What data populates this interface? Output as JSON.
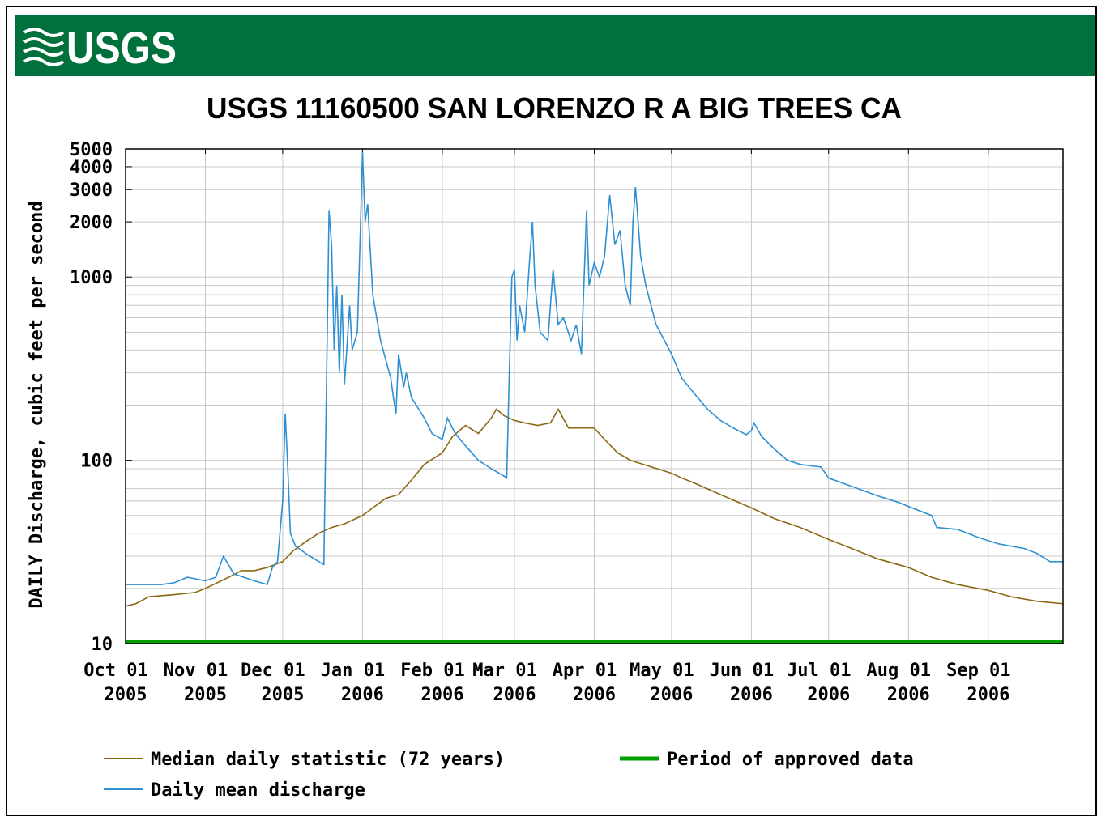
{
  "logo": "USGS",
  "chart_data": {
    "type": "line",
    "title": "USGS 11160500 SAN LORENZO R A BIG TREES CA",
    "ylabel": "DAILY Discharge, cubic feet per second",
    "yscale": "log",
    "grid": true,
    "ylim": [
      10,
      5000
    ],
    "yticks": [
      10,
      100,
      1000,
      2000,
      3000,
      4000,
      5000
    ],
    "yminor": [
      20,
      30,
      40,
      50,
      60,
      70,
      80,
      90,
      200,
      300,
      400,
      500,
      600,
      700,
      800,
      900
    ],
    "xlim": [
      "2005-10-01",
      "2006-09-30"
    ],
    "xticks": [
      {
        "value": "2005-10-01",
        "label": [
          "Oct 01",
          "2005"
        ]
      },
      {
        "value": "2005-11-01",
        "label": [
          "Nov 01",
          "2005"
        ]
      },
      {
        "value": "2005-12-01",
        "label": [
          "Dec 01",
          "2005"
        ]
      },
      {
        "value": "2006-01-01",
        "label": [
          "Jan 01",
          "2006"
        ]
      },
      {
        "value": "2006-02-01",
        "label": [
          "Feb 01",
          "2006"
        ]
      },
      {
        "value": "2006-03-01",
        "label": [
          "Mar 01",
          "2006"
        ]
      },
      {
        "value": "2006-04-01",
        "label": [
          "Apr 01",
          "2006"
        ]
      },
      {
        "value": "2006-05-01",
        "label": [
          "May 01",
          "2006"
        ]
      },
      {
        "value": "2006-06-01",
        "label": [
          "Jun 01",
          "2006"
        ]
      },
      {
        "value": "2006-07-01",
        "label": [
          "Jul 01",
          "2006"
        ]
      },
      {
        "value": "2006-08-01",
        "label": [
          "Aug 01",
          "2006"
        ]
      },
      {
        "value": "2006-09-01",
        "label": [
          "Sep 01",
          "2006"
        ]
      }
    ],
    "approved": {
      "name": "Period of approved data",
      "color": "#00a000",
      "start": "2005-10-01",
      "end": "2006-09-30"
    },
    "series": [
      {
        "name": "Median daily statistic (72 years)",
        "color": "#8b6914",
        "x": [
          "2005-10-01",
          "2005-10-05",
          "2005-10-10",
          "2005-10-20",
          "2005-10-28",
          "2005-11-01",
          "2005-11-10",
          "2005-11-15",
          "2005-11-20",
          "2005-11-25",
          "2005-12-01",
          "2005-12-05",
          "2005-12-10",
          "2005-12-15",
          "2005-12-20",
          "2005-12-25",
          "2006-01-01",
          "2006-01-05",
          "2006-01-10",
          "2006-01-15",
          "2006-01-20",
          "2006-01-25",
          "2006-02-01",
          "2006-02-05",
          "2006-02-10",
          "2006-02-15",
          "2006-02-20",
          "2006-02-22",
          "2006-02-25",
          "2006-03-01",
          "2006-03-05",
          "2006-03-10",
          "2006-03-15",
          "2006-03-18",
          "2006-03-22",
          "2006-04-01",
          "2006-04-05",
          "2006-04-10",
          "2006-04-15",
          "2006-04-20",
          "2006-05-01",
          "2006-05-05",
          "2006-05-10",
          "2006-05-20",
          "2006-06-01",
          "2006-06-10",
          "2006-06-20",
          "2006-07-01",
          "2006-07-10",
          "2006-07-20",
          "2006-08-01",
          "2006-08-10",
          "2006-08-20",
          "2006-08-28",
          "2006-09-01",
          "2006-09-10",
          "2006-09-20",
          "2006-09-30"
        ],
        "values": [
          16,
          16.5,
          18,
          18.5,
          19,
          20,
          23,
          25,
          25,
          26,
          28,
          32,
          36,
          40,
          43,
          45,
          50,
          55,
          62,
          65,
          78,
          95,
          110,
          135,
          155,
          140,
          170,
          190,
          175,
          165,
          160,
          155,
          160,
          190,
          150,
          150,
          130,
          110,
          100,
          95,
          85,
          80,
          75,
          65,
          55,
          48,
          43,
          37,
          33,
          29,
          26,
          23,
          21,
          20,
          19.5,
          18,
          17,
          16.5
        ]
      },
      {
        "name": "Daily mean discharge",
        "color": "#2e90d2",
        "x": [
          "2005-10-01",
          "2005-10-15",
          "2005-10-20",
          "2005-10-25",
          "2005-11-01",
          "2005-11-05",
          "2005-11-08",
          "2005-11-12",
          "2005-11-20",
          "2005-11-25",
          "2005-11-27",
          "2005-11-29",
          "2005-12-01",
          "2005-12-02",
          "2005-12-03",
          "2005-12-04",
          "2005-12-06",
          "2005-12-10",
          "2005-12-15",
          "2005-12-17",
          "2005-12-18",
          "2005-12-19",
          "2005-12-20",
          "2005-12-21",
          "2005-12-22",
          "2005-12-23",
          "2005-12-24",
          "2005-12-25",
          "2005-12-27",
          "2005-12-28",
          "2005-12-30",
          "2005-12-31",
          "2006-01-01",
          "2006-01-02",
          "2006-01-03",
          "2006-01-05",
          "2006-01-08",
          "2006-01-12",
          "2006-01-13",
          "2006-01-14",
          "2006-01-15",
          "2006-01-17",
          "2006-01-18",
          "2006-01-20",
          "2006-01-25",
          "2006-01-28",
          "2006-02-01",
          "2006-02-03",
          "2006-02-06",
          "2006-02-10",
          "2006-02-15",
          "2006-02-20",
          "2006-02-25",
          "2006-02-26",
          "2006-02-27",
          "2006-02-28",
          "2006-03-01",
          "2006-03-02",
          "2006-03-03",
          "2006-03-05",
          "2006-03-07",
          "2006-03-08",
          "2006-03-09",
          "2006-03-11",
          "2006-03-14",
          "2006-03-16",
          "2006-03-18",
          "2006-03-20",
          "2006-03-23",
          "2006-03-25",
          "2006-03-27",
          "2006-03-29",
          "2006-03-30",
          "2006-04-01",
          "2006-04-03",
          "2006-04-05",
          "2006-04-07",
          "2006-04-09",
          "2006-04-11",
          "2006-04-13",
          "2006-04-15",
          "2006-04-16",
          "2006-04-17",
          "2006-04-19",
          "2006-04-21",
          "2006-04-25",
          "2006-05-01",
          "2006-05-05",
          "2006-05-10",
          "2006-05-15",
          "2006-05-20",
          "2006-05-25",
          "2006-05-30",
          "2006-06-01",
          "2006-06-02",
          "2006-06-05",
          "2006-06-10",
          "2006-06-15",
          "2006-06-20",
          "2006-06-25",
          "2006-06-28",
          "2006-07-01",
          "2006-07-10",
          "2006-07-20",
          "2006-07-28",
          "2006-08-01",
          "2006-08-10",
          "2006-08-12",
          "2006-08-20",
          "2006-08-28",
          "2006-09-05",
          "2006-09-15",
          "2006-09-20",
          "2006-09-25",
          "2006-09-30"
        ],
        "values": [
          21,
          21,
          21.5,
          23,
          22,
          23,
          30,
          24,
          22,
          21,
          26,
          28,
          60,
          180,
          90,
          40,
          34,
          31,
          28,
          27,
          250,
          2300,
          1500,
          400,
          900,
          300,
          800,
          260,
          700,
          400,
          500,
          1500,
          4800,
          2000,
          2500,
          800,
          450,
          280,
          220,
          180,
          380,
          250,
          300,
          220,
          170,
          140,
          130,
          170,
          140,
          120,
          100,
          90,
          82,
          80,
          300,
          1000,
          1100,
          450,
          700,
          500,
          1300,
          2000,
          900,
          500,
          450,
          1100,
          550,
          600,
          450,
          550,
          380,
          2300,
          900,
          1200,
          1000,
          1300,
          2800,
          1500,
          1800,
          900,
          700,
          2000,
          3100,
          1300,
          900,
          550,
          380,
          280,
          230,
          190,
          165,
          150,
          138,
          145,
          160,
          135,
          115,
          100,
          95,
          93,
          92,
          80,
          72,
          64,
          59,
          56,
          50,
          43,
          42,
          38,
          35,
          33,
          31,
          28,
          28
        ]
      }
    ]
  }
}
